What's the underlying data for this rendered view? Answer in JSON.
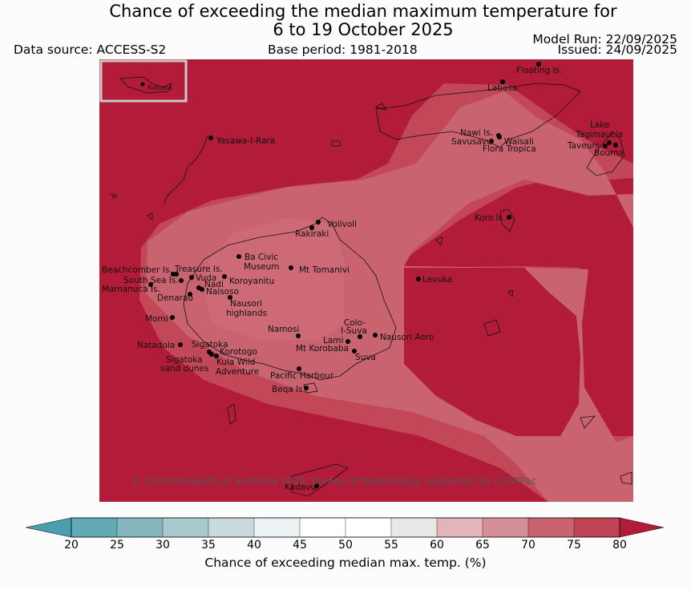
{
  "header": {
    "title_line1": "Chance of exceeding the median maximum temperature for",
    "title_line2": "6 to 19 October 2025",
    "data_source": "Data source: ACCESS-S2",
    "base_period": "Base period: 1981-2018",
    "model_run": "Model Run: 22/09/2025",
    "issued": "Issued: 24/09/2025"
  },
  "map": {
    "inset_label": "Rotuma",
    "copyright": "© Commonwealth of Australia 2025, Bureau of Meteorology, supported by COSPPac",
    "place_names": {
      "floating": "Floating Is.",
      "labasa": "Labasa",
      "nawi": "Nawi Is.",
      "savusavu": "Savusavu",
      "waisali": "Waisali",
      "flora": "Flora Tropica",
      "lake_line1": "Lake",
      "lake_line2": "Tagimaucia",
      "taveuni": "Taveuni",
      "bouma": "Bouma",
      "yasawa": "Yasawa-I-Rara",
      "koro": "Koro Is.",
      "volivoli": "Volivoli",
      "rakiraki": "Rakiraki",
      "ba_line1": "Ba Civic",
      "ba_line2": "Museum",
      "tomanivi": "Mt Tomanivi",
      "beachcomber": "Beachcomber Is.",
      "treasure": "Treasure Is.",
      "southsea": "South Sea Is.",
      "vuda": "Vuda",
      "nadi": "Nadi",
      "koroyanitu": "Koroyanitu",
      "mamanuca": "Mamanuca Is.",
      "naisoso": "Naisoso",
      "denarau": "Denarau",
      "nausori_h1": "Nausori",
      "nausori_h2": "highlands",
      "levuka": "Levuka",
      "momi": "Momi",
      "colo_line1": "Colo-",
      "colo_line2": "I-Suva",
      "namosi": "Namosi",
      "lami": "Lami",
      "nausori_aero": "Nausori Aero",
      "korobaba": "Mt Korobaba",
      "suva": "Suva",
      "natadola": "Natadola",
      "sigatoka": "Sigatoka",
      "korotogo": "Korotogo",
      "sig_dunes1": "Sigatoka",
      "sig_dunes2": "sand dunes",
      "kula1": "Kula Wild",
      "kula2": "Adventure",
      "pacific": "Pacific Harbour",
      "beqa": "Beqa Is.",
      "kadavu": "Kadavu"
    },
    "probability_zones_percent": [
      80,
      75,
      70
    ]
  },
  "colorbar": {
    "title": "Chance of exceeding median max. temp. (%)",
    "ticks": [
      "20",
      "25",
      "30",
      "35",
      "40",
      "45",
      "50",
      "55",
      "60",
      "65",
      "70",
      "75",
      "80"
    ],
    "colors": [
      "#4a9fae",
      "#63a9b6",
      "#86b7c1",
      "#a8cacf",
      "#c9dadf",
      "#ecf1f3",
      "#ffffff",
      "#ffffff",
      "#e9e8e8",
      "#e3b5bb",
      "#d58f98",
      "#c9636f",
      "#bf4453",
      "#b21c38"
    ]
  },
  "colors": {
    "zone80": "#b21c38",
    "zone75": "#c24757",
    "zone70": "#ca6370",
    "inset_bg": "#b21c38"
  }
}
